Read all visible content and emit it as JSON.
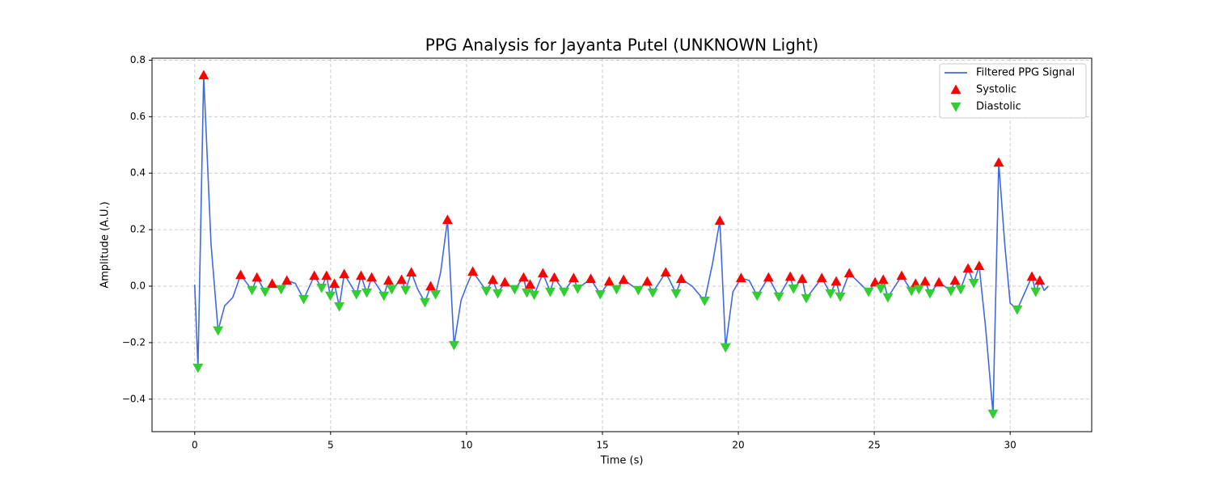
{
  "chart_data": {
    "type": "line",
    "title": "PPG Analysis for Jayanta Putel (UNKNOWN Light)",
    "x_label": "Time (s)",
    "y_label": "Amplitude (A.U.)",
    "xlim": [
      -1.57,
      33.0
    ],
    "ylim": [
      -0.515,
      0.807
    ],
    "xticks": [
      0,
      5,
      10,
      15,
      20,
      25,
      30
    ],
    "yticks": [
      {
        "value": -0.4,
        "label": "−0.4"
      },
      {
        "value": -0.2,
        "label": "−0.2"
      },
      {
        "value": 0,
        "label": "0.0"
      },
      0.2,
      0.4,
      0.6,
      0.8
    ],
    "grid": true,
    "legend": "upper-right",
    "series": [
      {
        "name": "Filtered PPG Signal",
        "color": "#4169e1",
        "x": [
          0.0,
          0.12,
          0.33,
          0.6,
          0.86,
          1.1,
          1.4,
          1.69,
          2.11,
          2.29,
          2.59,
          2.85,
          3.18,
          3.39,
          3.7,
          4.01,
          4.4,
          4.67,
          4.85,
          4.99,
          5.14,
          5.32,
          5.5,
          5.95,
          6.12,
          6.33,
          6.51,
          6.96,
          7.13,
          7.25,
          7.61,
          7.76,
          7.97,
          8.2,
          8.47,
          8.68,
          8.86,
          9.05,
          9.3,
          9.54,
          9.8,
          10.0,
          10.23,
          10.73,
          10.97,
          11.15,
          11.41,
          11.77,
          12.1,
          12.22,
          12.34,
          12.49,
          12.81,
          13.08,
          13.23,
          13.59,
          13.94,
          14.09,
          14.57,
          14.92,
          15.25,
          15.52,
          15.78,
          16.32,
          16.65,
          16.85,
          17.33,
          17.71,
          17.9,
          18.3,
          18.76,
          19.05,
          19.32,
          19.53,
          19.8,
          20.1,
          20.4,
          20.69,
          21.11,
          21.49,
          21.91,
          22.03,
          22.35,
          22.5,
          23.07,
          23.39,
          23.6,
          23.75,
          24.08,
          24.79,
          25.03,
          25.24,
          25.33,
          25.5,
          26.01,
          26.37,
          26.52,
          26.64,
          26.87,
          27.05,
          27.38,
          27.82,
          27.97,
          28.18,
          28.45,
          28.66,
          28.86,
          29.1,
          29.37,
          29.58,
          29.8,
          30.0,
          30.26,
          30.8,
          30.94,
          31.09,
          31.25,
          31.4
        ],
        "values": [
          0.005,
          -0.289,
          0.747,
          0.15,
          -0.157,
          -0.07,
          -0.04,
          0.04,
          -0.014,
          0.031,
          -0.02,
          0.009,
          -0.011,
          0.02,
          0.01,
          -0.046,
          0.037,
          -0.006,
          0.037,
          -0.034,
          0.009,
          -0.072,
          0.043,
          -0.029,
          0.037,
          -0.023,
          0.031,
          -0.034,
          0.02,
          -0.011,
          0.023,
          -0.014,
          0.049,
          -0.01,
          -0.057,
          0.0,
          -0.029,
          0.05,
          0.235,
          -0.209,
          -0.05,
          0.0,
          0.052,
          -0.017,
          0.023,
          -0.026,
          0.014,
          -0.011,
          0.031,
          -0.023,
          0.006,
          -0.031,
          0.046,
          -0.02,
          0.031,
          -0.02,
          0.029,
          -0.009,
          0.026,
          -0.029,
          0.017,
          -0.011,
          0.023,
          -0.014,
          0.017,
          -0.023,
          0.049,
          -0.026,
          0.026,
          0.0,
          -0.052,
          0.08,
          0.232,
          -0.217,
          -0.02,
          0.029,
          0.02,
          -0.034,
          0.031,
          -0.037,
          0.034,
          -0.009,
          0.026,
          -0.043,
          0.029,
          -0.026,
          0.017,
          -0.037,
          0.046,
          -0.02,
          0.014,
          -0.009,
          0.023,
          -0.04,
          0.037,
          -0.017,
          0.009,
          -0.011,
          0.017,
          -0.026,
          0.014,
          -0.017,
          0.02,
          -0.011,
          0.063,
          0.011,
          0.072,
          -0.15,
          -0.452,
          0.438,
          0.15,
          -0.06,
          -0.083,
          0.034,
          -0.02,
          0.02,
          -0.015,
          0.0
        ]
      },
      {
        "name": "Systolic",
        "color": "#ff0000",
        "marker": "triangle-up",
        "x": [
          0.33,
          1.69,
          2.29,
          2.85,
          3.39,
          4.4,
          4.85,
          5.14,
          5.5,
          6.12,
          6.51,
          7.13,
          7.61,
          7.97,
          8.68,
          9.3,
          10.23,
          10.97,
          11.41,
          12.1,
          12.34,
          12.81,
          13.23,
          13.94,
          14.57,
          15.25,
          15.78,
          16.65,
          17.33,
          17.9,
          19.32,
          20.1,
          21.11,
          21.91,
          22.35,
          23.07,
          23.6,
          24.08,
          25.03,
          25.33,
          26.01,
          26.52,
          26.87,
          27.38,
          27.97,
          28.45,
          28.86,
          29.58,
          30.8,
          31.09
        ],
        "values": [
          0.747,
          0.04,
          0.031,
          0.009,
          0.02,
          0.037,
          0.037,
          0.009,
          0.043,
          0.037,
          0.031,
          0.02,
          0.023,
          0.049,
          0.0,
          0.235,
          0.052,
          0.023,
          0.014,
          0.031,
          0.006,
          0.046,
          0.031,
          0.029,
          0.026,
          0.017,
          0.023,
          0.017,
          0.049,
          0.026,
          0.232,
          0.029,
          0.031,
          0.034,
          0.026,
          0.029,
          0.017,
          0.046,
          0.014,
          0.023,
          0.037,
          0.009,
          0.017,
          0.014,
          0.02,
          0.063,
          0.072,
          0.438,
          0.034,
          0.02
        ]
      },
      {
        "name": "Diastolic",
        "color": "#32cd32",
        "marker": "triangle-down",
        "x": [
          0.12,
          0.86,
          2.11,
          2.59,
          3.18,
          4.01,
          4.67,
          4.99,
          5.32,
          5.95,
          6.33,
          6.96,
          7.25,
          7.76,
          8.47,
          8.86,
          9.54,
          10.73,
          11.15,
          11.77,
          12.22,
          12.49,
          13.08,
          13.59,
          14.09,
          14.92,
          15.52,
          16.32,
          16.85,
          17.71,
          18.76,
          19.53,
          20.69,
          21.49,
          22.03,
          22.5,
          23.39,
          23.75,
          24.79,
          25.24,
          25.5,
          26.37,
          26.64,
          27.05,
          27.82,
          28.18,
          28.66,
          29.37,
          30.26,
          30.94
        ],
        "values": [
          -0.289,
          -0.157,
          -0.014,
          -0.02,
          -0.011,
          -0.046,
          -0.006,
          -0.034,
          -0.072,
          -0.029,
          -0.023,
          -0.034,
          -0.011,
          -0.014,
          -0.057,
          -0.029,
          -0.209,
          -0.017,
          -0.026,
          -0.011,
          -0.023,
          -0.031,
          -0.02,
          -0.02,
          -0.009,
          -0.029,
          -0.011,
          -0.014,
          -0.023,
          -0.026,
          -0.052,
          -0.217,
          -0.034,
          -0.037,
          -0.009,
          -0.043,
          -0.026,
          -0.037,
          -0.02,
          -0.009,
          -0.04,
          -0.017,
          -0.011,
          -0.026,
          -0.017,
          -0.011,
          0.011,
          -0.452,
          -0.083,
          -0.02
        ]
      }
    ]
  }
}
